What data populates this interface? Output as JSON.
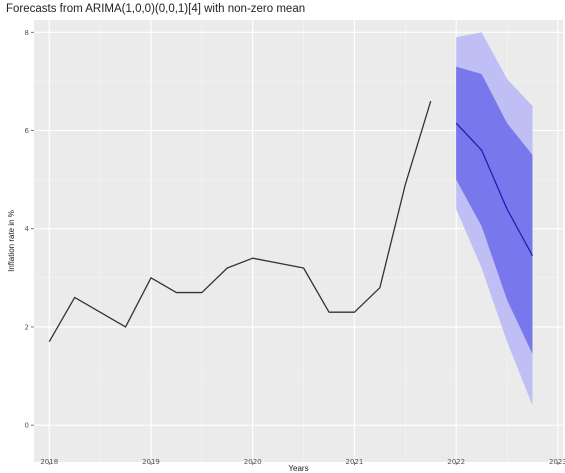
{
  "chart_data": {
    "type": "line",
    "title": "Forecasts from ARIMA(1,0,0)(0,0,1)[4] with non-zero mean",
    "xlabel": "Years",
    "ylabel": "Inflation rate in %",
    "xlim": [
      2017.85,
      2023.05
    ],
    "ylim": [
      -0.75,
      8.25
    ],
    "x_ticks": [
      2018,
      2019,
      2020,
      2021,
      2022,
      2023
    ],
    "x_tick_labels": [
      "2018",
      "2019",
      "2020",
      "2021",
      "2022",
      "2023"
    ],
    "y_ticks": [
      0,
      2,
      4,
      6,
      8
    ],
    "y_tick_labels": [
      "0",
      "2",
      "4",
      "6",
      "8"
    ],
    "grid": true,
    "background": "#ebebeb",
    "series": [
      {
        "role": "observed",
        "color": "#333333",
        "x": [
          2018.0,
          2018.25,
          2018.5,
          2018.75,
          2019.0,
          2019.25,
          2019.5,
          2019.75,
          2020.0,
          2020.5,
          2020.75,
          2021.0,
          2021.25,
          2021.5,
          2021.75
        ],
        "y": [
          1.7,
          2.6,
          2.3,
          2.0,
          3.0,
          2.7,
          2.7,
          3.2,
          3.4,
          3.2,
          2.3,
          2.3,
          2.8,
          4.9,
          6.6
        ]
      },
      {
        "role": "point-forecast",
        "color": "#1f1fb4",
        "x": [
          2022.0,
          2022.25,
          2022.5,
          2022.75
        ],
        "y": [
          6.15,
          5.6,
          4.4,
          3.45
        ]
      }
    ],
    "intervals": [
      {
        "level": 95,
        "color": "#bfbff5",
        "x": [
          2022.0,
          2022.25,
          2022.5,
          2022.75
        ],
        "lower": [
          4.4,
          3.2,
          1.7,
          0.4
        ],
        "upper": [
          7.9,
          8.0,
          7.05,
          6.5
        ]
      },
      {
        "level": 80,
        "color": "#7878ec",
        "x": [
          2022.0,
          2022.25,
          2022.5,
          2022.75
        ],
        "lower": [
          5.0,
          4.05,
          2.55,
          1.45
        ],
        "upper": [
          7.3,
          7.15,
          6.15,
          5.5
        ]
      }
    ]
  }
}
